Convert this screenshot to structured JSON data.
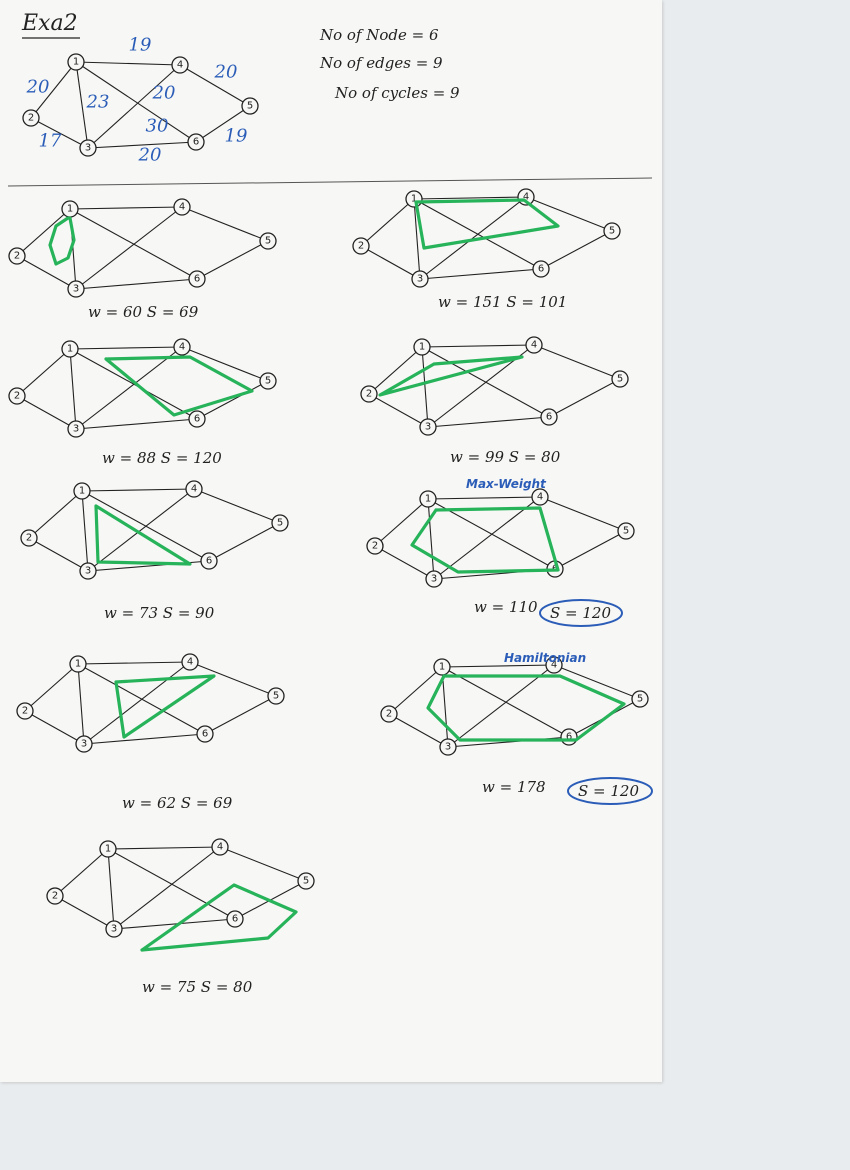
{
  "title": "Exa2",
  "stats": {
    "nodes": "No of Node = 6",
    "edges": "No of edges = 9",
    "cycles": "No of cycles = 9"
  },
  "weights": {
    "e12": "20",
    "e14": "19",
    "e13": "17",
    "e16": "23",
    "e46": "20",
    "e34": "30",
    "e45": "20",
    "e36": "20",
    "e56": "19"
  },
  "nodes": [
    "1",
    "2",
    "3",
    "4",
    "5",
    "6"
  ],
  "cycles": [
    {
      "caption": "w = 60   S = 69"
    },
    {
      "caption": "w = 151   S = 101"
    },
    {
      "caption": "w = 88   S = 120"
    },
    {
      "caption": "w = 99   S = 80"
    },
    {
      "caption": "w = 73   S = 90"
    },
    {
      "caption": "w = 110",
      "circled": "S = 120",
      "tag": "Max-Weight"
    },
    {
      "caption": "w = 62      S = 69"
    },
    {
      "caption": "w = 178",
      "circled": "S = 120",
      "tag": "Hamiltonian"
    },
    {
      "caption": "w = 75      S = 80"
    }
  ],
  "colors": {
    "cycle": "#27b35a",
    "annotation": "#2b5db8",
    "ink": "#222222"
  }
}
